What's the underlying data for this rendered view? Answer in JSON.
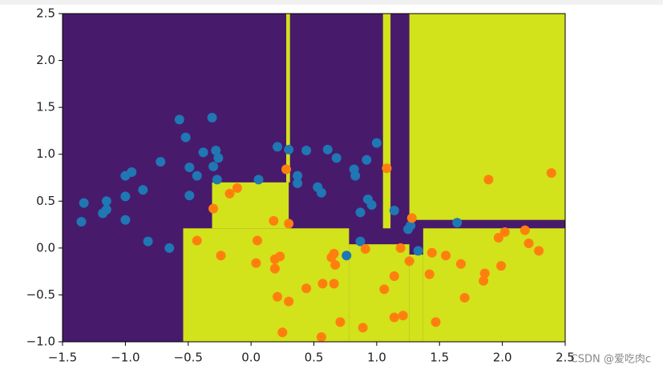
{
  "chart_data": {
    "type": "decision-regions",
    "background_color": "#481a6c",
    "region_color": "#d2e21b",
    "regions": [
      {
        "x": [
          0.28,
          0.31
        ],
        "y": [
          0.7,
          2.5
        ]
      },
      {
        "x": [
          -0.31,
          0.3
        ],
        "y": [
          0.21,
          0.7
        ]
      },
      {
        "x": [
          -0.54,
          0.78
        ],
        "y": [
          -1.0,
          0.21
        ]
      },
      {
        "x": [
          0.78,
          1.26
        ],
        "y": [
          -1.0,
          0.04
        ]
      },
      {
        "x": [
          1.26,
          1.37
        ],
        "y": [
          -1.0,
          -0.07
        ]
      },
      {
        "x": [
          1.37,
          2.5
        ],
        "y": [
          -1.0,
          0.21
        ]
      },
      {
        "x": [
          1.05,
          1.11
        ],
        "y": [
          0.21,
          2.5
        ]
      },
      {
        "x": [
          1.26,
          2.5
        ],
        "y": [
          0.3,
          2.5
        ]
      }
    ],
    "series": [
      {
        "color": "#1f77b4",
        "x": [
          -1.35,
          -1.33,
          -1.18,
          -1.15,
          -1.15,
          -1.0,
          -1.0,
          -1.0,
          -0.95,
          -0.86,
          -0.82,
          -0.72,
          -0.65,
          -0.57,
          -0.52,
          -0.49,
          -0.49,
          -0.43,
          -0.38,
          -0.31,
          -0.3,
          -0.28,
          -0.26,
          -0.27,
          0.06,
          0.21,
          0.3,
          0.37,
          0.37,
          0.44,
          0.53,
          0.56,
          0.61,
          0.68,
          0.82,
          0.83,
          0.87,
          0.92,
          0.93,
          0.96,
          1.0,
          1.14,
          0.76,
          0.87,
          1.25,
          1.27,
          1.33,
          1.64
        ],
        "values": [
          0.28,
          0.48,
          0.37,
          0.41,
          0.5,
          0.3,
          0.55,
          0.77,
          0.81,
          0.62,
          0.07,
          0.92,
          0.0,
          1.37,
          1.18,
          0.86,
          0.56,
          0.77,
          1.02,
          1.39,
          0.87,
          1.04,
          0.96,
          0.73,
          0.73,
          1.08,
          1.05,
          0.77,
          0.69,
          1.04,
          0.65,
          0.59,
          1.05,
          0.96,
          0.84,
          0.77,
          0.38,
          0.94,
          0.52,
          0.46,
          1.12,
          0.4,
          -0.08,
          0.07,
          0.2,
          0.24,
          -0.03,
          0.27
        ]
      },
      {
        "color": "#ff7f0e",
        "x": [
          -0.43,
          -0.3,
          -0.24,
          -0.17,
          -0.11,
          0.04,
          0.05,
          0.18,
          0.19,
          0.19,
          0.21,
          0.23,
          0.25,
          0.28,
          0.3,
          0.3,
          0.44,
          0.57,
          0.56,
          0.64,
          0.66,
          0.67,
          0.66,
          0.71,
          0.89,
          0.91,
          1.06,
          1.08,
          1.14,
          1.14,
          1.19,
          1.21,
          1.26,
          1.28,
          1.42,
          1.44,
          1.47,
          1.55,
          1.67,
          1.7,
          1.85,
          1.86,
          1.89,
          1.97,
          1.99,
          2.02,
          2.18,
          2.21,
          2.29,
          2.39
        ],
        "values": [
          0.08,
          0.42,
          -0.08,
          0.58,
          0.64,
          -0.16,
          0.08,
          0.29,
          -0.12,
          -0.22,
          -0.52,
          -0.09,
          -0.9,
          0.84,
          0.26,
          -0.57,
          -0.43,
          -0.38,
          -0.95,
          -0.1,
          -0.06,
          -0.18,
          -0.38,
          -0.79,
          -0.85,
          -0.01,
          -0.44,
          0.85,
          -0.3,
          -0.74,
          0.0,
          -0.72,
          -0.14,
          0.32,
          -0.28,
          -0.05,
          -0.79,
          -0.08,
          -0.17,
          -0.53,
          -0.35,
          -0.27,
          0.73,
          0.11,
          -0.19,
          0.17,
          0.19,
          0.05,
          -0.03,
          0.8
        ]
      }
    ],
    "xlim": [
      -1.5,
      2.5
    ],
    "ylim": [
      -1.0,
      2.5
    ],
    "xticks": [
      {
        "value": -1.5,
        "label": "−1.5"
      },
      {
        "value": -1.0,
        "label": "−1.0"
      },
      {
        "value": -0.5,
        "label": "−0.5"
      },
      {
        "value": 0,
        "label": "0.0"
      },
      {
        "value": 0.5,
        "label": "0.5"
      },
      {
        "value": 1.0,
        "label": "1.0"
      },
      {
        "value": 1.5,
        "label": "1.5"
      },
      {
        "value": 2.0,
        "label": "2.0"
      },
      {
        "value": 2.5,
        "label": "2.5"
      }
    ],
    "yticks": [
      {
        "value": -1.0,
        "label": "−1.0"
      },
      {
        "value": -0.5,
        "label": "−0.5"
      },
      {
        "value": 0,
        "label": "0.0"
      },
      {
        "value": 0.5,
        "label": "0.5"
      },
      {
        "value": 1.0,
        "label": "1.0"
      },
      {
        "value": 1.5,
        "label": "1.5"
      },
      {
        "value": 2.0,
        "label": "2.0"
      },
      {
        "value": 2.5,
        "label": "2.5"
      }
    ]
  },
  "watermark": "CSDN @爱吃肉c"
}
